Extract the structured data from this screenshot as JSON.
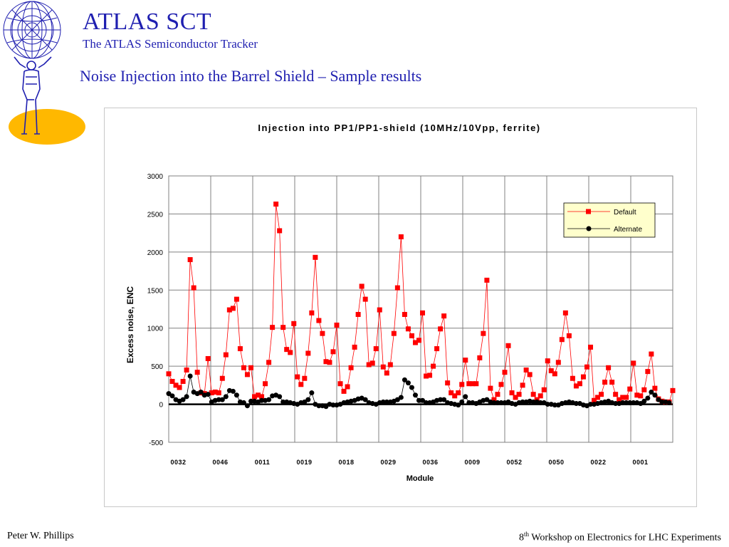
{
  "header": {
    "title": "ATLAS SCT",
    "subtitle": "The ATLAS Semiconductor Tracker",
    "heading": "Noise Injection into the Barrel Shield – Sample results"
  },
  "footer": {
    "author": "Peter W. Phillips",
    "event_ordinal": "8",
    "event_ordinal_suffix": "th",
    "event_name": "Workshop on Electronics for LHC Experiments"
  },
  "colors": {
    "text_blue": "#1f1fb0",
    "default_series": "#ff0000",
    "alternate_series": "#000000",
    "logo_ellipse": "#ffb800",
    "legend_bg": "#ffffcc"
  },
  "chart_data": {
    "type": "line",
    "title": "Injection into PP1/PP1-shield (10MHz/10Vpp, ferrite)",
    "xlabel": "Module",
    "ylabel": "Excess noise, ENC",
    "ylim": [
      -500,
      3000
    ],
    "yticks": [
      "3000",
      "2500",
      "2000",
      "1500",
      "1000",
      "500",
      "0",
      "-500"
    ],
    "grid": true,
    "legend_position": "top-right",
    "x_category_labels": [
      "0032",
      "0046",
      "0011",
      "0019",
      "0018",
      "0029",
      "0036",
      "0009",
      "0052",
      "0050",
      "0022",
      "0001"
    ],
    "series": [
      {
        "name": "Default",
        "marker": "square",
        "values": [
          400,
          300,
          250,
          220,
          300,
          450,
          1900,
          1530,
          420,
          150,
          140,
          600,
          150,
          160,
          150,
          340,
          650,
          1240,
          1260,
          1380,
          730,
          480,
          390,
          480,
          100,
          120,
          100,
          270,
          550,
          1010,
          2630,
          2280,
          1010,
          720,
          680,
          1060,
          360,
          260,
          340,
          670,
          1200,
          1930,
          1100,
          930,
          560,
          550,
          690,
          1040,
          270,
          170,
          230,
          480,
          750,
          1180,
          1550,
          1380,
          520,
          540,
          730,
          1240,
          490,
          410,
          520,
          930,
          1530,
          2200,
          1180,
          990,
          900,
          810,
          840,
          1200,
          370,
          380,
          500,
          730,
          990,
          1160,
          280,
          150,
          110,
          150,
          260,
          580,
          270,
          270,
          270,
          610,
          930,
          1630,
          210,
          60,
          130,
          260,
          420,
          770,
          150,
          90,
          130,
          250,
          450,
          390,
          130,
          60,
          110,
          190,
          570,
          440,
          400,
          550,
          850,
          1200,
          900,
          340,
          240,
          270,
          360,
          490,
          750,
          50,
          90,
          130,
          290,
          480,
          290,
          130,
          60,
          90,
          90,
          200,
          540,
          120,
          110,
          190,
          430,
          660,
          210,
          70,
          40,
          30,
          30,
          180
        ]
      },
      {
        "name": "Alternate",
        "marker": "circle",
        "values": [
          140,
          110,
          60,
          40,
          60,
          100,
          370,
          160,
          140,
          160,
          120,
          130,
          30,
          50,
          60,
          60,
          100,
          180,
          170,
          120,
          30,
          20,
          -20,
          40,
          40,
          30,
          50,
          50,
          60,
          110,
          120,
          100,
          30,
          30,
          20,
          10,
          0,
          20,
          30,
          60,
          150,
          0,
          -20,
          -20,
          -30,
          0,
          -10,
          -10,
          0,
          20,
          30,
          40,
          50,
          70,
          80,
          60,
          20,
          10,
          0,
          20,
          30,
          30,
          30,
          40,
          60,
          90,
          320,
          280,
          220,
          120,
          50,
          50,
          20,
          20,
          30,
          50,
          60,
          60,
          20,
          10,
          0,
          -10,
          30,
          100,
          20,
          20,
          10,
          30,
          50,
          60,
          30,
          20,
          20,
          20,
          20,
          30,
          10,
          0,
          20,
          30,
          30,
          40,
          30,
          30,
          20,
          20,
          0,
          0,
          -10,
          -10,
          10,
          20,
          30,
          20,
          10,
          10,
          -10,
          -20,
          0,
          0,
          10,
          20,
          30,
          40,
          20,
          10,
          10,
          20,
          20,
          20,
          20,
          20,
          10,
          40,
          80,
          160,
          120,
          60,
          30,
          30,
          20
        ]
      }
    ]
  }
}
